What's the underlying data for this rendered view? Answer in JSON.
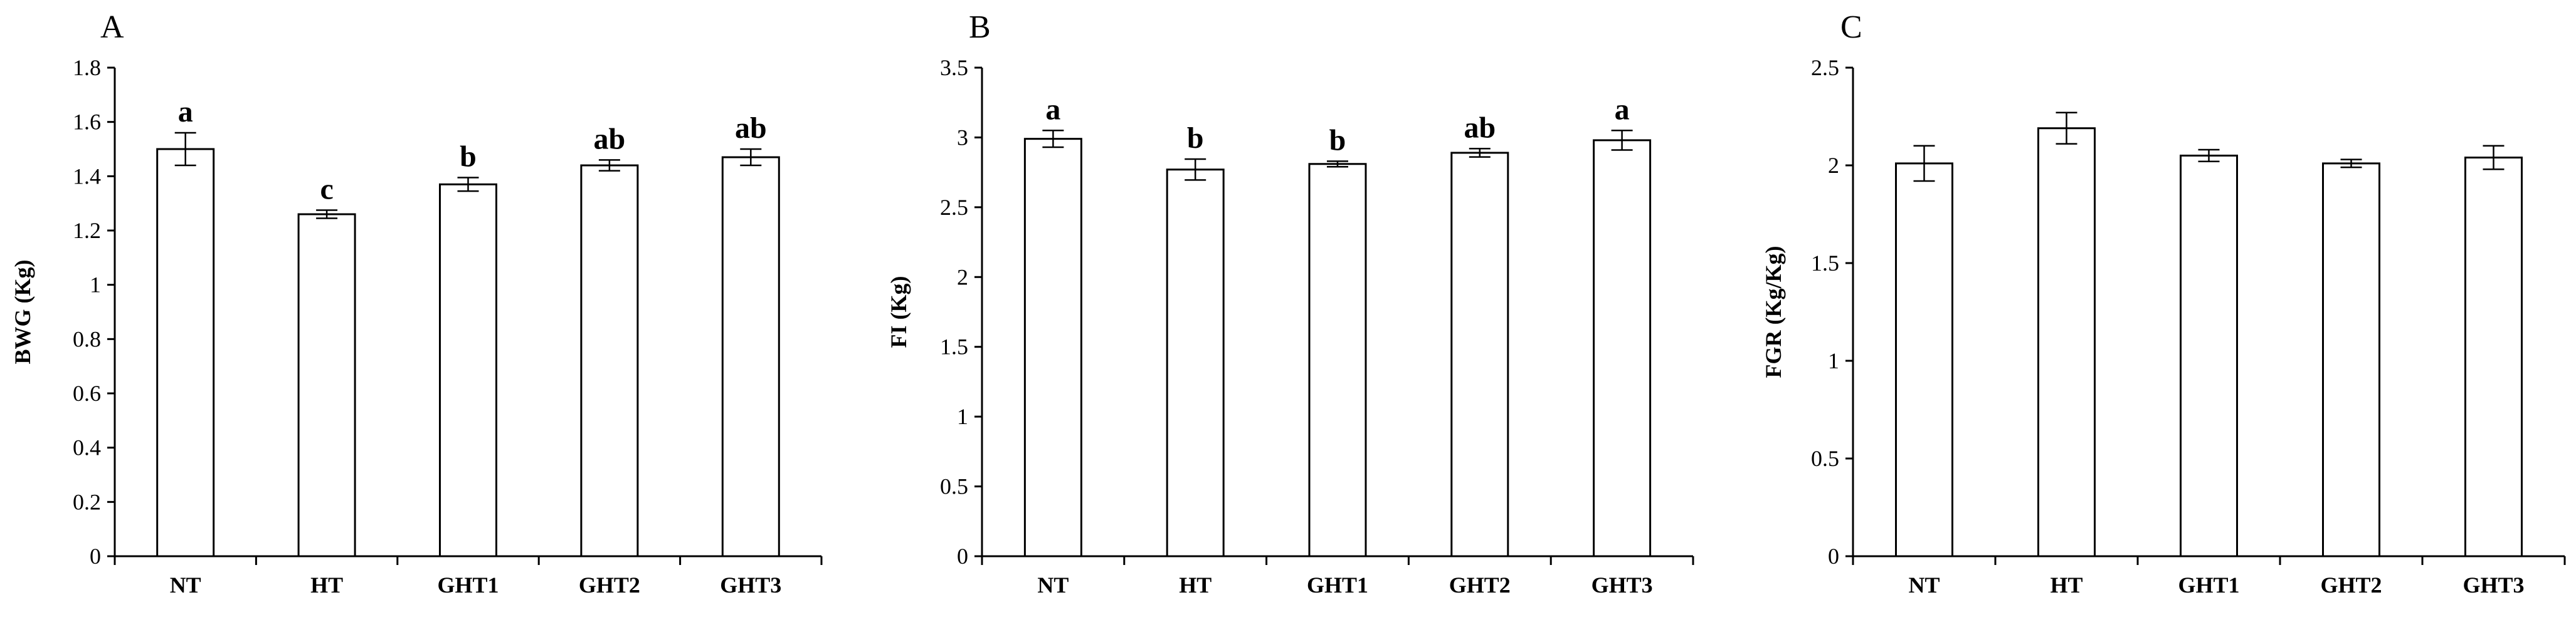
{
  "chart_data": [
    {
      "type": "bar",
      "panel": "A",
      "categories": [
        "NT",
        "HT",
        "GHT1",
        "GHT2",
        "GHT3"
      ],
      "values": [
        1.5,
        1.26,
        1.37,
        1.44,
        1.47
      ],
      "errors": [
        0.06,
        0.015,
        0.025,
        0.02,
        0.03
      ],
      "significance": [
        "a",
        "c",
        "b",
        "ab",
        "ab"
      ],
      "ylabel": "BWG (Kg)",
      "ylim": [
        0,
        1.8
      ],
      "yticks": [
        "0",
        "0.2",
        "0.4",
        "0.6",
        "0.8",
        "1",
        "1.2",
        "1.4",
        "1.6",
        "1.8"
      ],
      "grid": false,
      "bar_color": "#ffffff"
    },
    {
      "type": "bar",
      "panel": "B",
      "categories": [
        "NT",
        "HT",
        "GHT1",
        "GHT2",
        "GHT3"
      ],
      "values": [
        2.99,
        2.77,
        2.81,
        2.89,
        2.98
      ],
      "errors": [
        0.06,
        0.075,
        0.02,
        0.03,
        0.07
      ],
      "significance": [
        "a",
        "b",
        "b",
        "ab",
        "a"
      ],
      "ylabel": "FI (Kg)",
      "ylim": [
        0,
        3.5
      ],
      "yticks": [
        "0",
        "0.5",
        "1",
        "1.5",
        "2",
        "2.5",
        "3",
        "3.5"
      ],
      "grid": false,
      "bar_color": "#ffffff"
    },
    {
      "type": "bar",
      "panel": "C",
      "categories": [
        "NT",
        "HT",
        "GHT1",
        "GHT2",
        "GHT3"
      ],
      "values": [
        2.01,
        2.19,
        2.05,
        2.01,
        2.04
      ],
      "errors": [
        0.09,
        0.08,
        0.03,
        0.02,
        0.06
      ],
      "significance": [],
      "ylabel": "FGR (Kg/Kg)",
      "ylim": [
        0,
        2.5
      ],
      "yticks": [
        "0",
        "0.5",
        "1",
        "1.5",
        "2",
        "2.5"
      ],
      "grid": false,
      "bar_color": "#ffffff"
    }
  ]
}
